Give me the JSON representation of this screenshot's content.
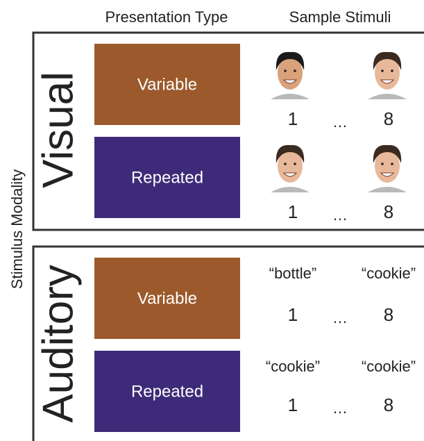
{
  "header": {
    "columns": [
      "Presentation Type",
      "Sample Stimuli"
    ]
  },
  "side_label": "Stimulus Modality",
  "panels": [
    {
      "label": "Visual",
      "rows": [
        {
          "type": "Variable",
          "stimuli": {
            "first": null,
            "last": null,
            "first_index": "1",
            "ellipsis": "…",
            "last_index": "8"
          }
        },
        {
          "type": "Repeated",
          "stimuli": {
            "first": null,
            "last": null,
            "first_index": "1",
            "ellipsis": "…",
            "last_index": "8"
          }
        }
      ]
    },
    {
      "label": "Auditory",
      "rows": [
        {
          "type": "Variable",
          "stimuli": {
            "first": "“bottle”",
            "last": "“cookie”",
            "first_index": "1",
            "ellipsis": "…",
            "last_index": "8"
          }
        },
        {
          "type": "Repeated",
          "stimuli": {
            "first": "“cookie”",
            "last": "“cookie”",
            "first_index": "1",
            "ellipsis": "…",
            "last_index": "8"
          }
        }
      ]
    }
  ]
}
